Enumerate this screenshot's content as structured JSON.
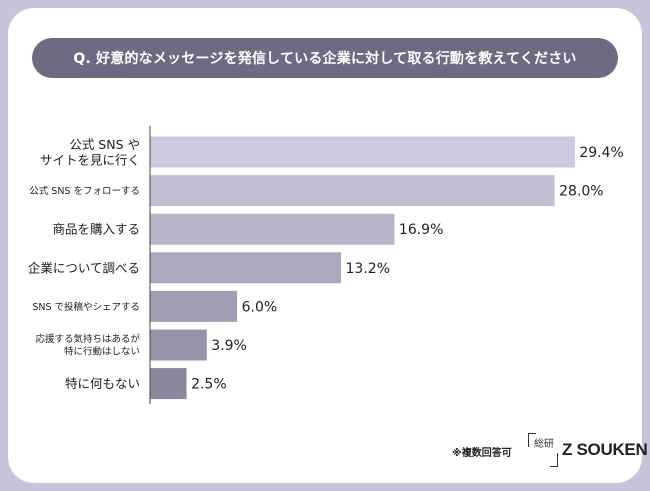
{
  "question": "Q. 好意的なメッセージを発信している企業に対して取る行動を教えてください",
  "footnote": "※複数回答可",
  "logo": {
    "mark_text": "総研",
    "name": "Z SOUKEN"
  },
  "colors": {
    "frame": "#c8c3da",
    "pill": "#6e6a82",
    "bar_light": "#cdc9de",
    "bar_dark": "#8b879d"
  },
  "chart_data": {
    "type": "bar",
    "orientation": "horizontal",
    "title": "Q. 好意的なメッセージを発信している企業に対して取る行動を教えてください",
    "xlim": [
      0,
      30
    ],
    "value_suffix": "%",
    "categories": [
      [
        "公式 SNS や",
        "サイトを見に行く"
      ],
      [
        "公式 SNS をフォローする"
      ],
      [
        "商品を購入する"
      ],
      [
        "企業について調べる"
      ],
      [
        "SNS で投稿やシェアする"
      ],
      [
        "応援する気持ちはあるが",
        "特に行動はしない"
      ],
      [
        "特に何もない"
      ]
    ],
    "values": [
      29.4,
      28.0,
      16.9,
      13.2,
      6.0,
      3.9,
      2.5
    ],
    "value_labels": [
      "29.4%",
      "28.0%",
      "16.9%",
      "13.2%",
      "6.0%",
      "3.9%",
      "2.5%"
    ],
    "label_sizes": [
      "large",
      "small",
      "large",
      "large",
      "small",
      "small",
      "large"
    ]
  }
}
